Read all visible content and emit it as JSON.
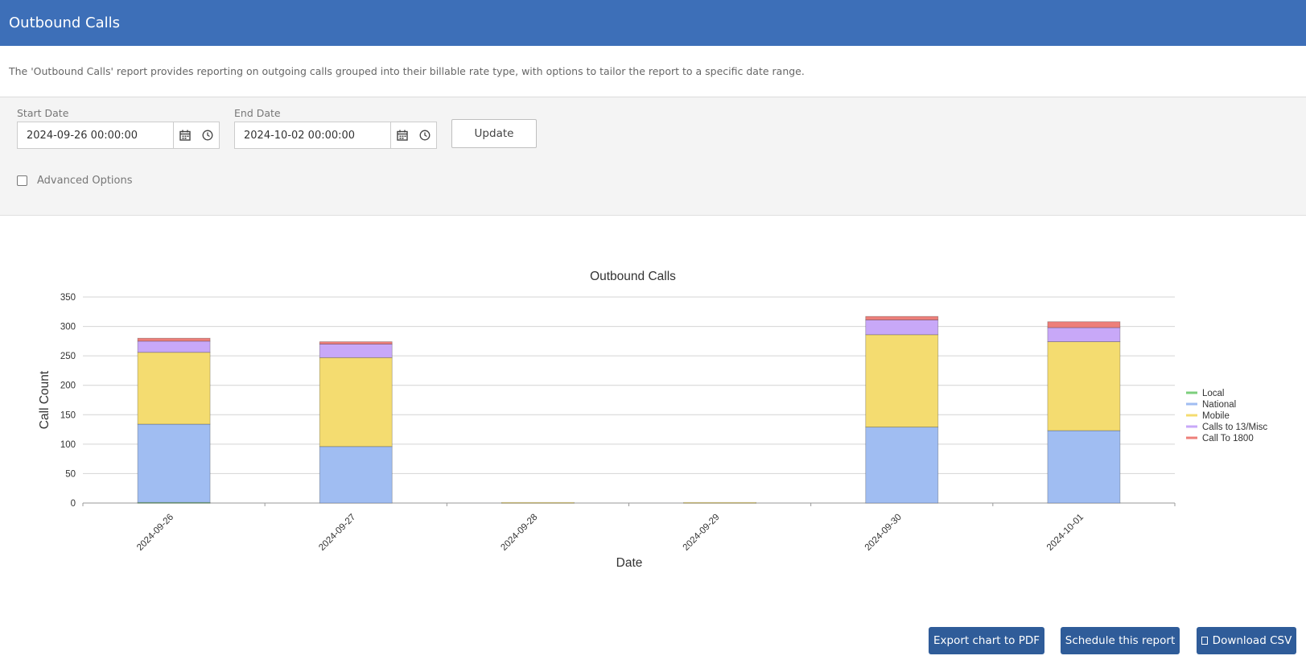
{
  "header": {
    "title": "Outbound Calls"
  },
  "description": "The 'Outbound Calls' report provides reporting on outgoing calls grouped into their billable rate type, with options to tailor the report to a specific date range.",
  "filters": {
    "start_label": "Start Date",
    "start_value": "2024-09-26 00:00:00",
    "end_label": "End Date",
    "end_value": "2024-10-02 00:00:00",
    "update_label": "Update",
    "advanced_label": "Advanced Options",
    "advanced_checked": false
  },
  "icons": {
    "calendar": "calendar-icon",
    "clock": "clock-icon",
    "download": "download-icon"
  },
  "actions": {
    "export_pdf": "Export chart to PDF",
    "schedule": "Schedule this report",
    "download_csv": "Download CSV"
  },
  "chart_data": {
    "type": "bar",
    "stacked": true,
    "title": "Outbound Calls",
    "xlabel": "Date",
    "ylabel": "Call Count",
    "ylim": [
      0,
      350
    ],
    "yticks": [
      0,
      50,
      100,
      150,
      200,
      250,
      300,
      350
    ],
    "grid": true,
    "legend_position": "right",
    "categories": [
      "2024-09-26",
      "2024-09-27",
      "2024-09-28",
      "2024-09-29",
      "2024-09-30",
      "2024-10-01"
    ],
    "series": [
      {
        "name": "Local",
        "color": "#7ccf7c",
        "values": [
          1,
          0,
          0,
          0,
          0,
          0
        ]
      },
      {
        "name": "National",
        "color": "#a0bdf2",
        "values": [
          133,
          96,
          0,
          0,
          129,
          123
        ]
      },
      {
        "name": "Mobile",
        "color": "#f4dc70",
        "values": [
          122,
          151,
          1,
          1,
          157,
          151
        ]
      },
      {
        "name": "Calls to 13/Misc",
        "color": "#c8a8f8",
        "values": [
          19,
          23,
          0,
          0,
          25,
          24
        ]
      },
      {
        "name": "Call To 1800",
        "color": "#ed7f7a",
        "values": [
          5,
          4,
          0,
          0,
          6,
          10
        ]
      }
    ]
  }
}
